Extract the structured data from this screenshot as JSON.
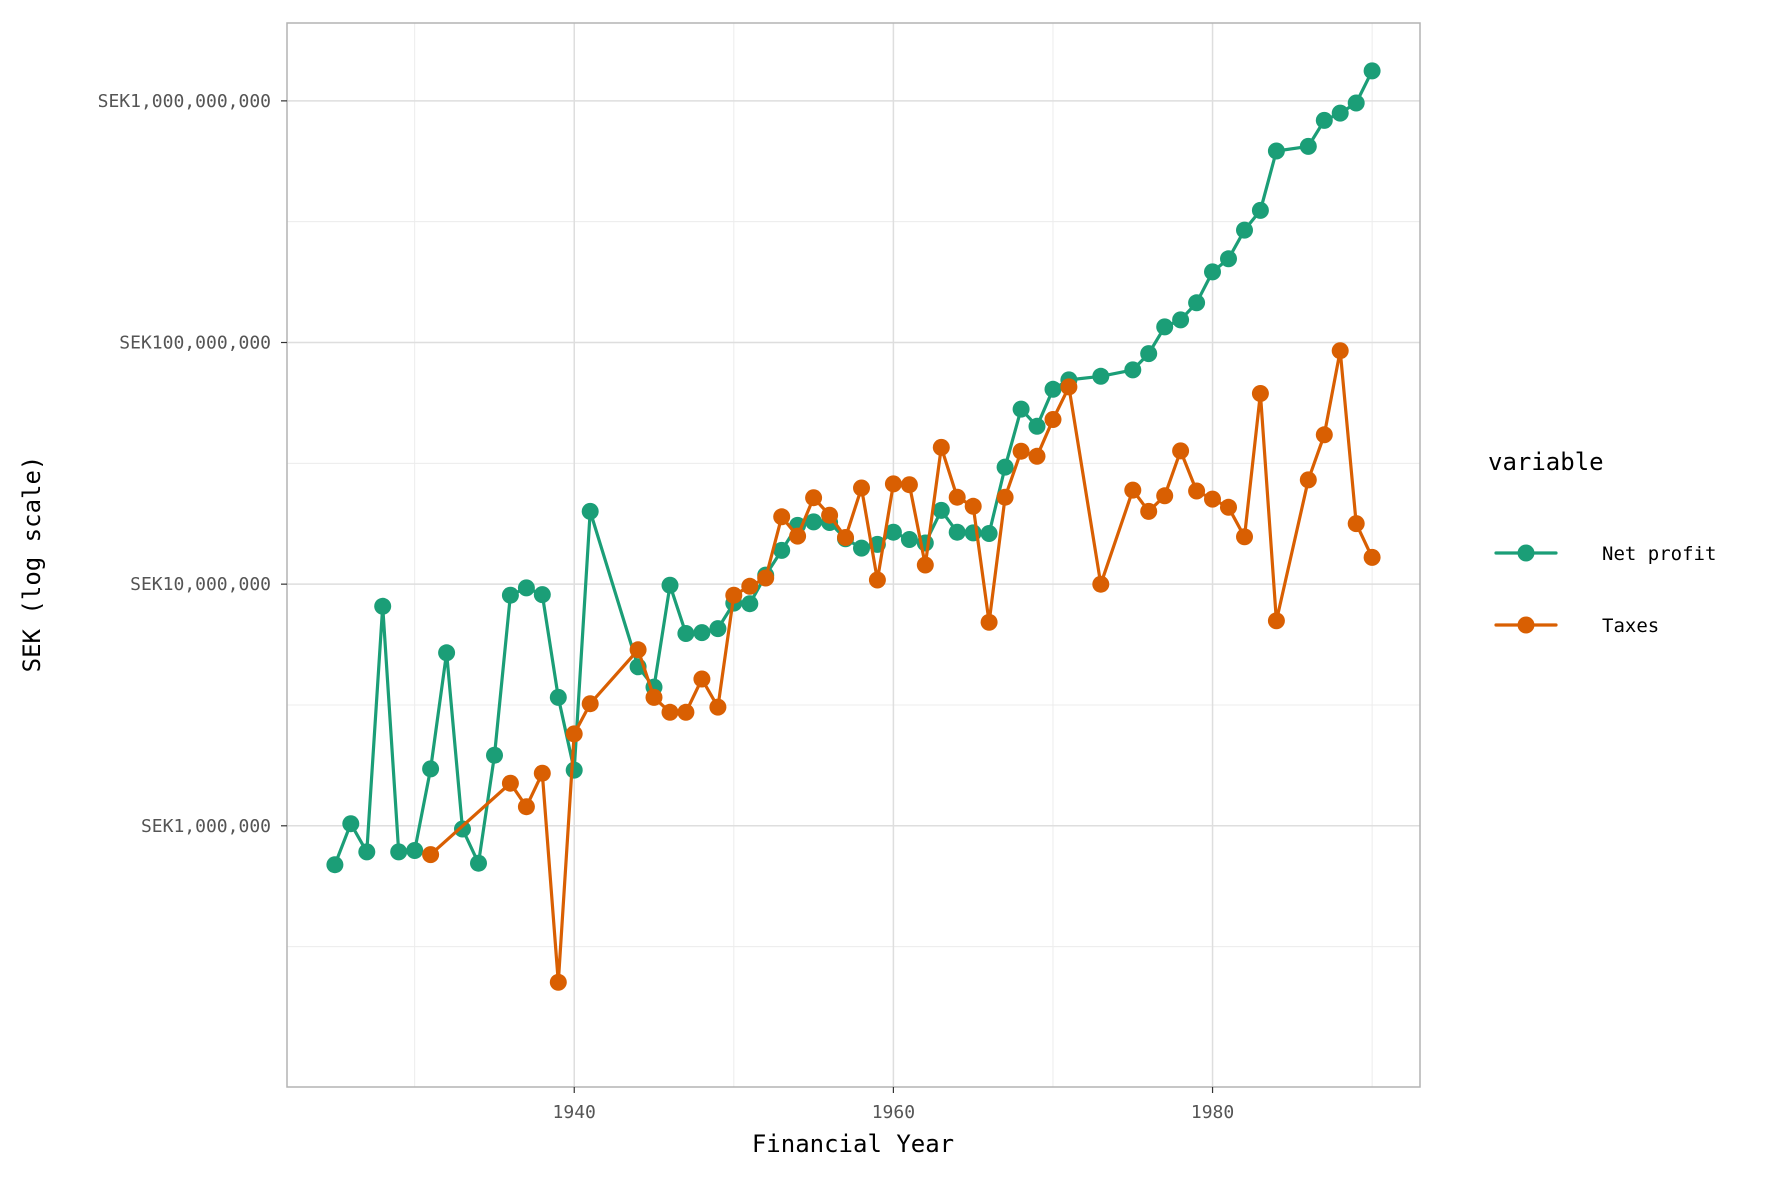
{
  "chart_data": {
    "type": "line",
    "title": "",
    "xlabel": "Financial Year",
    "ylabel": "SEK (log scale)",
    "y_scale": "log10",
    "xlim": [
      1922,
      1993
    ],
    "ylim": [
      83000,
      2100000000
    ],
    "x_ticks": [
      1940,
      1960,
      1980
    ],
    "x_tick_labels": [
      "1940",
      "1960",
      "1980"
    ],
    "y_ticks": [
      1000000,
      10000000,
      100000000,
      1000000000
    ],
    "y_tick_labels": [
      "SEK1,000,000",
      "SEK10,000,000",
      "SEK100,000,000",
      "SEK1,000,000,000"
    ],
    "grid": true,
    "legend": {
      "title": "variable",
      "position": "right"
    },
    "series": [
      {
        "name": "Net profit",
        "color": "#1b9e77",
        "points": [
          [
            1925,
            690000
          ],
          [
            1926,
            1020000
          ],
          [
            1927,
            780000
          ],
          [
            1928,
            8100000
          ],
          [
            1929,
            780000
          ],
          [
            1930,
            790000
          ],
          [
            1931,
            1720000
          ],
          [
            1932,
            5200000
          ],
          [
            1933,
            970000
          ],
          [
            1934,
            700000
          ],
          [
            1935,
            1960000
          ],
          [
            1936,
            9000000
          ],
          [
            1937,
            9650000
          ],
          [
            1938,
            9050000
          ],
          [
            1939,
            3400000
          ],
          [
            1940,
            1700000
          ],
          [
            1941,
            20000000
          ],
          [
            1944,
            4550000
          ],
          [
            1945,
            3750000
          ],
          [
            1946,
            9900000
          ],
          [
            1947,
            6250000
          ],
          [
            1948,
            6300000
          ],
          [
            1949,
            6550000
          ],
          [
            1950,
            8350000
          ],
          [
            1951,
            8300000
          ],
          [
            1952,
            10900000
          ],
          [
            1953,
            13800000
          ],
          [
            1954,
            17500000
          ],
          [
            1955,
            18100000
          ],
          [
            1956,
            18000000
          ],
          [
            1957,
            15400000
          ],
          [
            1958,
            14100000
          ],
          [
            1959,
            14600000
          ],
          [
            1960,
            16400000
          ],
          [
            1961,
            15300000
          ],
          [
            1962,
            14800000
          ],
          [
            1963,
            20200000
          ],
          [
            1964,
            16400000
          ],
          [
            1965,
            16300000
          ],
          [
            1966,
            16200000
          ],
          [
            1967,
            30500000
          ],
          [
            1968,
            53000000
          ],
          [
            1969,
            45000000
          ],
          [
            1970,
            64000000
          ],
          [
            1971,
            70000000
          ],
          [
            1973,
            72500000
          ],
          [
            1975,
            77000000
          ],
          [
            1976,
            90000000
          ],
          [
            1977,
            116000000
          ],
          [
            1978,
            124000000
          ],
          [
            1979,
            146000000
          ],
          [
            1980,
            196000000
          ],
          [
            1981,
            222000000
          ],
          [
            1982,
            292000000
          ],
          [
            1983,
            352000000
          ],
          [
            1984,
            620000000
          ],
          [
            1986,
            648000000
          ],
          [
            1987,
            830000000
          ],
          [
            1988,
            890000000
          ],
          [
            1989,
            980000000
          ],
          [
            1990,
            1330000000
          ]
        ]
      },
      {
        "name": "Taxes",
        "color": "#d95f02",
        "points": [
          [
            1931,
            760000
          ],
          [
            1936,
            1500000
          ],
          [
            1937,
            1200000
          ],
          [
            1938,
            1650000
          ],
          [
            1939,
            225000
          ],
          [
            1940,
            2400000
          ],
          [
            1941,
            3200000
          ],
          [
            1944,
            5350000
          ],
          [
            1945,
            3400000
          ],
          [
            1946,
            2950000
          ],
          [
            1947,
            2950000
          ],
          [
            1948,
            4050000
          ],
          [
            1949,
            3100000
          ],
          [
            1950,
            9000000
          ],
          [
            1951,
            9800000
          ],
          [
            1952,
            10600000
          ],
          [
            1953,
            19000000
          ],
          [
            1954,
            15800000
          ],
          [
            1955,
            22800000
          ],
          [
            1956,
            19300000
          ],
          [
            1957,
            15600000
          ],
          [
            1958,
            25000000
          ],
          [
            1959,
            10400000
          ],
          [
            1960,
            26000000
          ],
          [
            1961,
            25800000
          ],
          [
            1962,
            12000000
          ],
          [
            1963,
            36800000
          ],
          [
            1964,
            22900000
          ],
          [
            1965,
            21000000
          ],
          [
            1966,
            6950000
          ],
          [
            1967,
            22900000
          ],
          [
            1968,
            35500000
          ],
          [
            1969,
            33800000
          ],
          [
            1970,
            48000000
          ],
          [
            1971,
            65500000
          ],
          [
            1973,
            10000000
          ],
          [
            1975,
            24500000
          ],
          [
            1976,
            20000000
          ],
          [
            1977,
            23200000
          ],
          [
            1978,
            35600000
          ],
          [
            1979,
            24300000
          ],
          [
            1980,
            22500000
          ],
          [
            1981,
            20800000
          ],
          [
            1982,
            15700000
          ],
          [
            1983,
            61500000
          ],
          [
            1984,
            7050000
          ],
          [
            1986,
            27000000
          ],
          [
            1987,
            41500000
          ],
          [
            1988,
            92500000
          ],
          [
            1989,
            17800000
          ],
          [
            1990,
            12900000
          ]
        ]
      }
    ]
  }
}
